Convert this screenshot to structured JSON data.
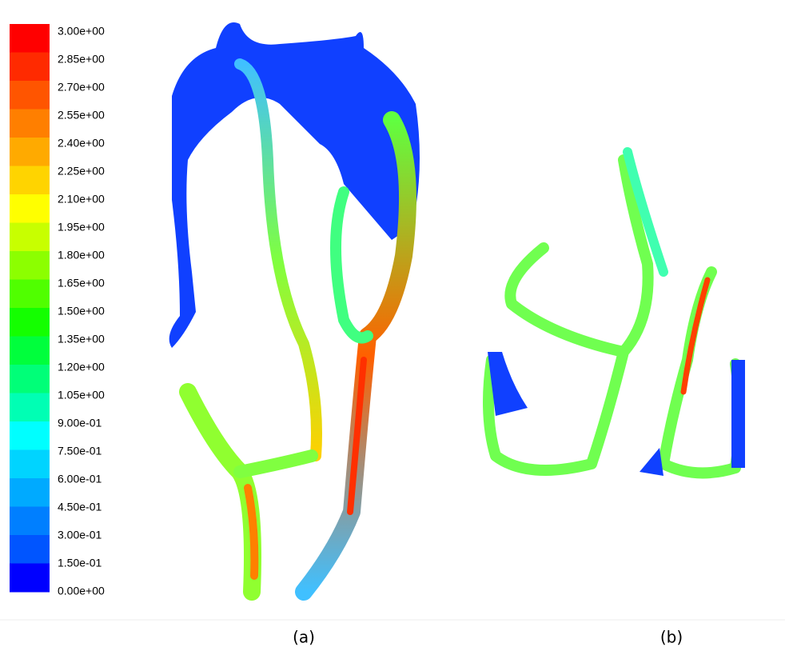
{
  "legend": {
    "labels": [
      "3.00e+00",
      "2.85e+00",
      "2.70e+00",
      "2.55e+00",
      "2.40e+00",
      "2.25e+00",
      "2.10e+00",
      "1.95e+00",
      "1.80e+00",
      "1.65e+00",
      "1.50e+00",
      "1.35e+00",
      "1.20e+00",
      "1.05e+00",
      "9.00e-01",
      "7.50e-01",
      "6.00e-01",
      "4.50e-01",
      "3.00e-01",
      "1.50e-01",
      "0.00e+00"
    ],
    "colors": [
      "#ff0000",
      "#ff2a00",
      "#ff5500",
      "#ff7f00",
      "#ffaa00",
      "#ffd400",
      "#ffff00",
      "#c8ff00",
      "#8cff00",
      "#50ff00",
      "#14ff00",
      "#00ff3c",
      "#00ff78",
      "#00ffb4",
      "#00ffff",
      "#00d4ff",
      "#00aaff",
      "#007fff",
      "#0055ff",
      "#0000ff"
    ]
  },
  "captions": [
    "(a)",
    "(b)"
  ]
}
